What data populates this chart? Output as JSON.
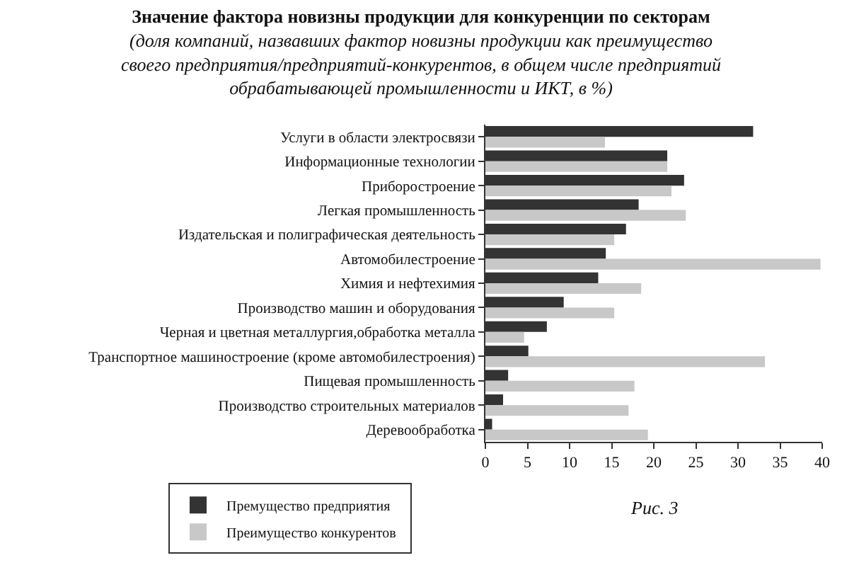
{
  "chart_data": {
    "type": "bar",
    "orientation": "horizontal",
    "title": "Значение фактора новизны продукции для конкуренции по секторам",
    "subtitle": "(доля компаний, назвавших фактор новизны продукции как преимущество своего предприятия/предприятий-конкурентов, в общем числе предприятий обрабатывающей промышленности и ИКТ, в %)",
    "categories": [
      "Услуги в области электросвязи",
      "Информационные технологии",
      "Приборостроение",
      "Легкая промышленность",
      "Издательская и полиграфическая деятельность",
      "Автомобилестроение",
      "Химия и нефтехимия",
      "Производство машин и оборудования",
      "Черная и цветная металлургия,обработка металла",
      "Транспортное машиностроение (кроме автомобилестроения)",
      "Пищевая промышленность",
      "Производство строительных материалов",
      "Деревообработка"
    ],
    "series": [
      {
        "name": "Премущество предприятия",
        "color": "#333333",
        "values": [
          31.8,
          21.6,
          23.6,
          18.2,
          16.7,
          14.3,
          13.4,
          9.3,
          7.3,
          5.1,
          2.7,
          2.1,
          0.8
        ]
      },
      {
        "name": "Преимущество конкурентов",
        "color": "#c8c8c8",
        "values": [
          14.2,
          21.6,
          22.1,
          23.8,
          15.3,
          39.8,
          18.5,
          15.3,
          4.6,
          33.2,
          17.7,
          17.0,
          19.3
        ]
      }
    ],
    "xlim": [
      0,
      40
    ],
    "xticks": [
      0,
      5,
      10,
      15,
      20,
      25,
      30,
      35,
      40
    ],
    "legend": "bottom",
    "annotations": [
      "Рис. 3"
    ]
  }
}
